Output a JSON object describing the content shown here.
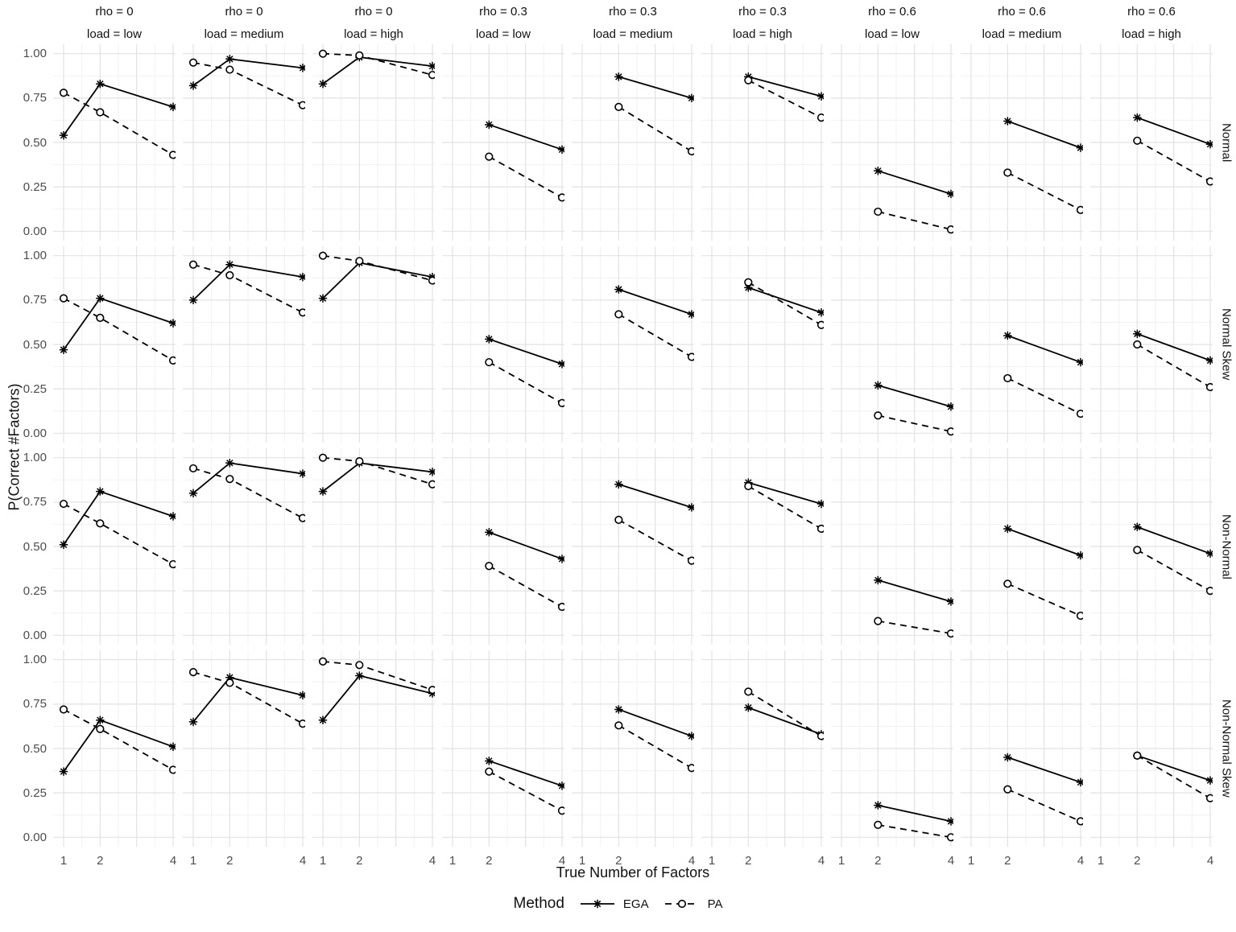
{
  "chart_data": {
    "type": "line",
    "x_axis": {
      "label": "True Number of Factors",
      "ticks": [
        "1",
        "2",
        "4"
      ],
      "tick_values": [
        1,
        2,
        4
      ],
      "range": [
        0.713,
        4.066
      ]
    },
    "y_axis": {
      "label": "P(Correct #Factors)",
      "ticks": [
        "1.00",
        "0.75",
        "0.50",
        "0.25",
        "0.00"
      ],
      "tick_values": [
        1.0,
        0.75,
        0.5,
        0.25,
        0.0
      ],
      "range": [
        -0.053,
        1.053
      ],
      "minor_ticks": [
        0.125,
        0.375,
        0.625,
        0.875
      ]
    },
    "legend": {
      "title": "Method",
      "entries": [
        {
          "label": "EGA",
          "marker": "star",
          "linestyle": "solid"
        },
        {
          "label": "PA",
          "marker": "circle",
          "linestyle": "dashed"
        }
      ]
    },
    "facets": {
      "columns": [
        {
          "rho": "rho = 0",
          "load": "load = low"
        },
        {
          "rho": "rho = 0",
          "load": "load = medium"
        },
        {
          "rho": "rho = 0",
          "load": "load = high"
        },
        {
          "rho": "rho = 0.3",
          "load": "load = low"
        },
        {
          "rho": "rho = 0.3",
          "load": "load = medium"
        },
        {
          "rho": "rho = 0.3",
          "load": "load = high"
        },
        {
          "rho": "rho = 0.6",
          "load": "load = low"
        },
        {
          "rho": "rho = 0.6",
          "load": "load = medium"
        },
        {
          "rho": "rho = 0.6",
          "load": "load = high"
        }
      ],
      "rows": [
        "Normal",
        "Normal Skew",
        "Non-Normal",
        "Non-Normal Skew"
      ]
    },
    "colors": {
      "series": "#000000",
      "grid_major": "#e2e2e2",
      "grid_minor": "#f1f1f1",
      "tick_text": "#4d4d4d",
      "label_text": "#111111",
      "background": "#ffffff"
    },
    "panels": [
      [
        {
          "x": [
            1,
            2,
            4
          ],
          "EGA": [
            0.54,
            0.83,
            0.7
          ],
          "PA": [
            0.78,
            0.67,
            0.43
          ]
        },
        {
          "x": [
            1,
            2,
            4
          ],
          "EGA": [
            0.82,
            0.97,
            0.92
          ],
          "PA": [
            0.95,
            0.91,
            0.71
          ]
        },
        {
          "x": [
            1,
            2,
            4
          ],
          "EGA": [
            0.83,
            0.98,
            0.93
          ],
          "PA": [
            1.0,
            0.99,
            0.88
          ]
        },
        {
          "x": [
            2,
            4
          ],
          "EGA": [
            0.6,
            0.46
          ],
          "PA": [
            0.42,
            0.19
          ]
        },
        {
          "x": [
            2,
            4
          ],
          "EGA": [
            0.87,
            0.75
          ],
          "PA": [
            0.7,
            0.45
          ]
        },
        {
          "x": [
            2,
            4
          ],
          "EGA": [
            0.87,
            0.76
          ],
          "PA": [
            0.85,
            0.64
          ]
        },
        {
          "x": [
            2,
            4
          ],
          "EGA": [
            0.34,
            0.21
          ],
          "PA": [
            0.11,
            0.01
          ]
        },
        {
          "x": [
            2,
            4
          ],
          "EGA": [
            0.62,
            0.47
          ],
          "PA": [
            0.33,
            0.12
          ]
        },
        {
          "x": [
            2,
            4
          ],
          "EGA": [
            0.64,
            0.49
          ],
          "PA": [
            0.51,
            0.28
          ]
        }
      ],
      [
        {
          "x": [
            1,
            2,
            4
          ],
          "EGA": [
            0.47,
            0.76,
            0.62
          ],
          "PA": [
            0.76,
            0.65,
            0.41
          ]
        },
        {
          "x": [
            1,
            2,
            4
          ],
          "EGA": [
            0.75,
            0.95,
            0.88
          ],
          "PA": [
            0.95,
            0.89,
            0.68
          ]
        },
        {
          "x": [
            1,
            2,
            4
          ],
          "EGA": [
            0.76,
            0.96,
            0.88
          ],
          "PA": [
            1.0,
            0.97,
            0.86
          ]
        },
        {
          "x": [
            2,
            4
          ],
          "EGA": [
            0.53,
            0.39
          ],
          "PA": [
            0.4,
            0.17
          ]
        },
        {
          "x": [
            2,
            4
          ],
          "EGA": [
            0.81,
            0.67
          ],
          "PA": [
            0.67,
            0.43
          ]
        },
        {
          "x": [
            2,
            4
          ],
          "EGA": [
            0.82,
            0.68
          ],
          "PA": [
            0.85,
            0.61
          ]
        },
        {
          "x": [
            2,
            4
          ],
          "EGA": [
            0.27,
            0.15
          ],
          "PA": [
            0.1,
            0.01
          ]
        },
        {
          "x": [
            2,
            4
          ],
          "EGA": [
            0.55,
            0.4
          ],
          "PA": [
            0.31,
            0.11
          ]
        },
        {
          "x": [
            2,
            4
          ],
          "EGA": [
            0.56,
            0.41
          ],
          "PA": [
            0.5,
            0.26
          ]
        }
      ],
      [
        {
          "x": [
            1,
            2,
            4
          ],
          "EGA": [
            0.51,
            0.81,
            0.67
          ],
          "PA": [
            0.74,
            0.63,
            0.4
          ]
        },
        {
          "x": [
            1,
            2,
            4
          ],
          "EGA": [
            0.8,
            0.97,
            0.91
          ],
          "PA": [
            0.94,
            0.88,
            0.66
          ]
        },
        {
          "x": [
            1,
            2,
            4
          ],
          "EGA": [
            0.81,
            0.97,
            0.92
          ],
          "PA": [
            1.0,
            0.98,
            0.85
          ]
        },
        {
          "x": [
            2,
            4
          ],
          "EGA": [
            0.58,
            0.43
          ],
          "PA": [
            0.39,
            0.16
          ]
        },
        {
          "x": [
            2,
            4
          ],
          "EGA": [
            0.85,
            0.72
          ],
          "PA": [
            0.65,
            0.42
          ]
        },
        {
          "x": [
            2,
            4
          ],
          "EGA": [
            0.86,
            0.74
          ],
          "PA": [
            0.84,
            0.6
          ]
        },
        {
          "x": [
            2,
            4
          ],
          "EGA": [
            0.31,
            0.19
          ],
          "PA": [
            0.08,
            0.01
          ]
        },
        {
          "x": [
            2,
            4
          ],
          "EGA": [
            0.6,
            0.45
          ],
          "PA": [
            0.29,
            0.11
          ]
        },
        {
          "x": [
            2,
            4
          ],
          "EGA": [
            0.61,
            0.46
          ],
          "PA": [
            0.48,
            0.25
          ]
        }
      ],
      [
        {
          "x": [
            1,
            2,
            4
          ],
          "EGA": [
            0.37,
            0.66,
            0.51
          ],
          "PA": [
            0.72,
            0.61,
            0.38
          ]
        },
        {
          "x": [
            1,
            2,
            4
          ],
          "EGA": [
            0.65,
            0.9,
            0.8
          ],
          "PA": [
            0.93,
            0.87,
            0.64
          ]
        },
        {
          "x": [
            1,
            2,
            4
          ],
          "EGA": [
            0.66,
            0.91,
            0.81
          ],
          "PA": [
            0.99,
            0.97,
            0.83
          ]
        },
        {
          "x": [
            2,
            4
          ],
          "EGA": [
            0.43,
            0.29
          ],
          "PA": [
            0.37,
            0.15
          ]
        },
        {
          "x": [
            2,
            4
          ],
          "EGA": [
            0.72,
            0.57
          ],
          "PA": [
            0.63,
            0.39
          ]
        },
        {
          "x": [
            2,
            4
          ],
          "EGA": [
            0.73,
            0.58
          ],
          "PA": [
            0.82,
            0.57
          ]
        },
        {
          "x": [
            2,
            4
          ],
          "EGA": [
            0.18,
            0.09
          ],
          "PA": [
            0.07,
            0.0
          ]
        },
        {
          "x": [
            2,
            4
          ],
          "EGA": [
            0.45,
            0.31
          ],
          "PA": [
            0.27,
            0.09
          ]
        },
        {
          "x": [
            2,
            4
          ],
          "EGA": [
            0.46,
            0.32
          ],
          "PA": [
            0.46,
            0.22
          ]
        }
      ]
    ]
  }
}
